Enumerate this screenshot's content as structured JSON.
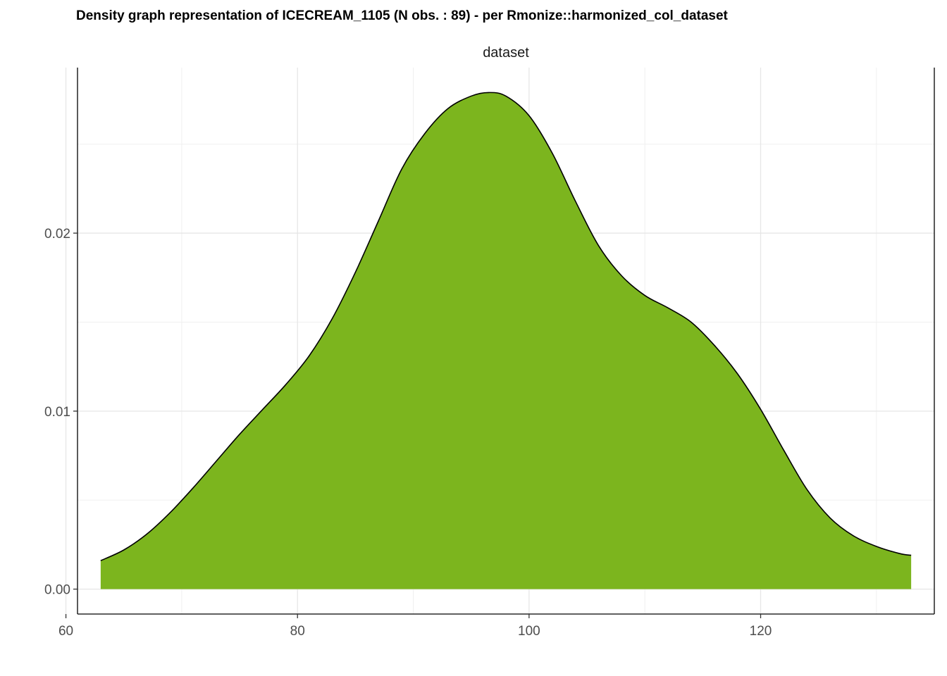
{
  "chart_data": {
    "type": "area",
    "title": "Density graph representation of ICECREAM_1105 (N obs. : 89) - per Rmonize::harmonized_col_dataset",
    "facet_label": "dataset",
    "xlabel": "",
    "ylabel": "",
    "xlim": [
      61,
      135
    ],
    "ylim": [
      -0.0014,
      0.0293
    ],
    "x_ticks": [
      60,
      80,
      100,
      120
    ],
    "x_tick_labels": [
      "60",
      "80",
      "100",
      "120"
    ],
    "y_ticks": [
      0.0,
      0.01,
      0.02
    ],
    "y_tick_labels": [
      "0.00",
      "0.01",
      "0.02"
    ],
    "grid": true,
    "legend": "none",
    "fill_color": "#7cb51e",
    "line_color": "#000000",
    "series": [
      {
        "x": [
          63,
          65,
          67,
          69,
          71,
          73,
          75,
          77,
          79,
          81,
          83,
          85,
          87,
          89,
          91,
          93,
          95,
          96.5,
          98,
          100,
          102,
          104,
          106,
          108,
          110,
          112,
          114,
          116,
          118,
          120,
          122,
          124,
          126,
          128,
          130,
          132,
          133
        ],
        "y": [
          0.0016,
          0.0022,
          0.0031,
          0.0043,
          0.0057,
          0.0072,
          0.0087,
          0.0101,
          0.0115,
          0.0131,
          0.0152,
          0.0178,
          0.0207,
          0.0236,
          0.0256,
          0.027,
          0.0277,
          0.0279,
          0.0277,
          0.0266,
          0.0245,
          0.0218,
          0.0193,
          0.0176,
          0.0165,
          0.0158,
          0.015,
          0.0137,
          0.0121,
          0.0101,
          0.0078,
          0.0056,
          0.004,
          0.003,
          0.0024,
          0.002,
          0.0019
        ]
      }
    ]
  }
}
